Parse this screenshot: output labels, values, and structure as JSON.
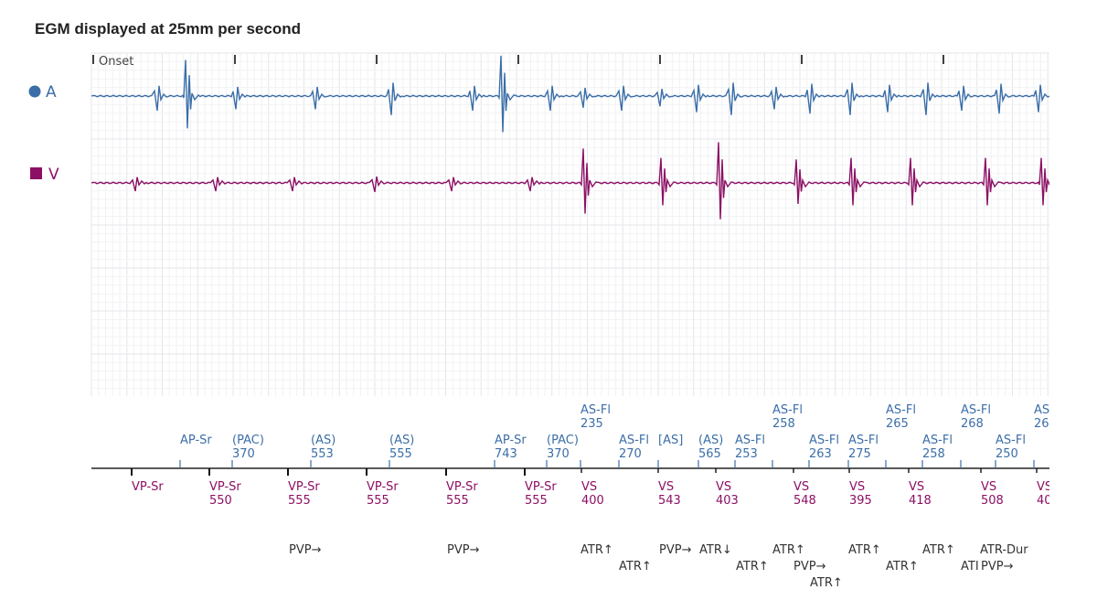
{
  "title": "EGM displayed at 25mm per second",
  "colors": {
    "atrial": "#3b6ea8",
    "ventricular": "#8c1065",
    "marker_text": "#333333",
    "grid_major": "#e4e6ea",
    "grid_minor": "#f1f2f4"
  },
  "chart_data": {
    "type": "line",
    "title": "EGM displayed at 25mm per second",
    "onset_label": "Onset",
    "series": [
      {
        "name": "A",
        "key": "atrial",
        "beats": [
          {
            "t": 172,
            "amp": 1.0
          },
          {
            "t": 205,
            "amp": 2.6,
            "style": "big"
          },
          {
            "t": 258,
            "amp": 0.9
          },
          {
            "t": 345,
            "amp": 0.9
          },
          {
            "t": 428,
            "amp": 1.3
          },
          {
            "t": 517,
            "amp": 1.0
          },
          {
            "t": 550,
            "amp": 2.9,
            "style": "big"
          },
          {
            "t": 602,
            "amp": 1.0
          },
          {
            "t": 638,
            "amp": 0.8
          },
          {
            "t": 680,
            "amp": 1.0
          },
          {
            "t": 722,
            "amp": 0.7
          },
          {
            "t": 762,
            "amp": 1.1
          },
          {
            "t": 800,
            "amp": 1.3
          },
          {
            "t": 847,
            "amp": 0.9
          },
          {
            "t": 886,
            "amp": 1.2
          },
          {
            "t": 930,
            "amp": 1.3
          },
          {
            "t": 971,
            "amp": 1.1
          },
          {
            "t": 1013,
            "amp": 1.3
          },
          {
            "t": 1052,
            "amp": 1.0
          },
          {
            "t": 1093,
            "amp": 1.2
          },
          {
            "t": 1136,
            "amp": 1.1
          }
        ]
      },
      {
        "name": "V",
        "key": "ventricular",
        "beats": [
          {
            "t": 148,
            "amp": 0.5
          },
          {
            "t": 236,
            "amp": 0.5
          },
          {
            "t": 320,
            "amp": 0.5
          },
          {
            "t": 410,
            "amp": 0.55
          },
          {
            "t": 494,
            "amp": 0.5
          },
          {
            "t": 580,
            "amp": 0.5
          },
          {
            "t": 640,
            "amp": 2.2,
            "style": "big"
          },
          {
            "t": 725,
            "amp": 1.6,
            "style": "big"
          },
          {
            "t": 788,
            "amp": 2.6,
            "style": "big"
          },
          {
            "t": 873,
            "amp": 1.5,
            "style": "big"
          },
          {
            "t": 933,
            "amp": 1.6,
            "style": "big"
          },
          {
            "t": 998,
            "amp": 1.6,
            "style": "big"
          },
          {
            "t": 1080,
            "amp": 1.6,
            "style": "big"
          },
          {
            "t": 1141,
            "amp": 1.6,
            "style": "big"
          }
        ]
      }
    ],
    "second_ticks": [
      102,
      257,
      412,
      567,
      722,
      877,
      1032
    ],
    "atrial_markers": [
      {
        "t": 197,
        "lines": [
          "AP-Sr"
        ]
      },
      {
        "t": 254,
        "lines": [
          "(PAC)",
          "370"
        ]
      },
      {
        "t": 340,
        "lines": [
          "(AS)",
          "553"
        ]
      },
      {
        "t": 426,
        "lines": [
          "(AS)",
          "555"
        ]
      },
      {
        "t": 541,
        "lines": [
          "AP-Sr",
          "743"
        ]
      },
      {
        "t": 598,
        "lines": [
          "(PAC)",
          "370"
        ]
      },
      {
        "t": 635,
        "lines": [
          "AS-Fl",
          "235"
        ],
        "row": 2
      },
      {
        "t": 677,
        "lines": [
          "AS-Fl",
          "270"
        ]
      },
      {
        "t": 720,
        "lines": [
          "[AS]"
        ]
      },
      {
        "t": 764,
        "lines": [
          "(AS)",
          "565"
        ]
      },
      {
        "t": 804,
        "lines": [
          "AS-Fl",
          "253"
        ]
      },
      {
        "t": 845,
        "lines": [
          "AS-Fl",
          "258"
        ],
        "row": 2
      },
      {
        "t": 885,
        "lines": [
          "AS-Fl",
          "263"
        ]
      },
      {
        "t": 928,
        "lines": [
          "AS-Fl",
          "275"
        ]
      },
      {
        "t": 969,
        "lines": [
          "AS-Fl",
          "265"
        ],
        "row": 2
      },
      {
        "t": 1009,
        "lines": [
          "AS-Fl",
          "258"
        ]
      },
      {
        "t": 1051,
        "lines": [
          "AS-Fl",
          "268"
        ],
        "row": 2
      },
      {
        "t": 1089,
        "lines": [
          "AS-Fl",
          "250"
        ]
      },
      {
        "t": 1131,
        "lines": [
          "AS",
          "26"
        ],
        "row": 2
      }
    ],
    "ventricular_markers": [
      {
        "t": 144,
        "lines": [
          "VP-Sr"
        ]
      },
      {
        "t": 229,
        "lines": [
          "VP-Sr",
          "550"
        ]
      },
      {
        "t": 315,
        "lines": [
          "VP-Sr",
          "555"
        ]
      },
      {
        "t": 401,
        "lines": [
          "VP-Sr",
          "555"
        ]
      },
      {
        "t": 488,
        "lines": [
          "VP-Sr",
          "555"
        ]
      },
      {
        "t": 574,
        "lines": [
          "VP-Sr",
          "555"
        ]
      },
      {
        "t": 636,
        "lines": [
          "VS",
          "400"
        ]
      },
      {
        "t": 720,
        "lines": [
          "VS",
          "543"
        ]
      },
      {
        "t": 783,
        "lines": [
          "VS",
          "403"
        ]
      },
      {
        "t": 868,
        "lines": [
          "VS",
          "548"
        ]
      },
      {
        "t": 929,
        "lines": [
          "VS",
          "395"
        ]
      },
      {
        "t": 994,
        "lines": [
          "VS",
          "418"
        ]
      },
      {
        "t": 1073,
        "lines": [
          "VS",
          "508"
        ]
      },
      {
        "t": 1134,
        "lines": [
          "VS",
          "40"
        ]
      }
    ],
    "annotations": [
      {
        "t": 316,
        "row": 0,
        "text": "PVP→"
      },
      {
        "t": 489,
        "row": 0,
        "text": "PVP→"
      },
      {
        "t": 635,
        "row": 0,
        "text": "ATR↑"
      },
      {
        "t": 677,
        "row": 1,
        "text": "ATR↑"
      },
      {
        "t": 721,
        "row": 0,
        "text": "PVP→"
      },
      {
        "t": 765,
        "row": 0,
        "text": "ATR↓"
      },
      {
        "t": 805,
        "row": 1,
        "text": "ATR↑"
      },
      {
        "t": 845,
        "row": 0,
        "text": "ATR↑"
      },
      {
        "t": 868,
        "row": 1,
        "text": "PVP→"
      },
      {
        "t": 886,
        "row": 2,
        "text": "ATR↑"
      },
      {
        "t": 928,
        "row": 0,
        "text": "ATR↑"
      },
      {
        "t": 969,
        "row": 1,
        "text": "ATR↑"
      },
      {
        "t": 1009,
        "row": 0,
        "text": "ATR↑"
      },
      {
        "t": 1051,
        "row": 1,
        "text": "ATI"
      },
      {
        "t": 1073,
        "row": 1,
        "text": "PVP→"
      },
      {
        "t": 1072,
        "row": 0,
        "text": "ATR-Dur"
      }
    ]
  }
}
